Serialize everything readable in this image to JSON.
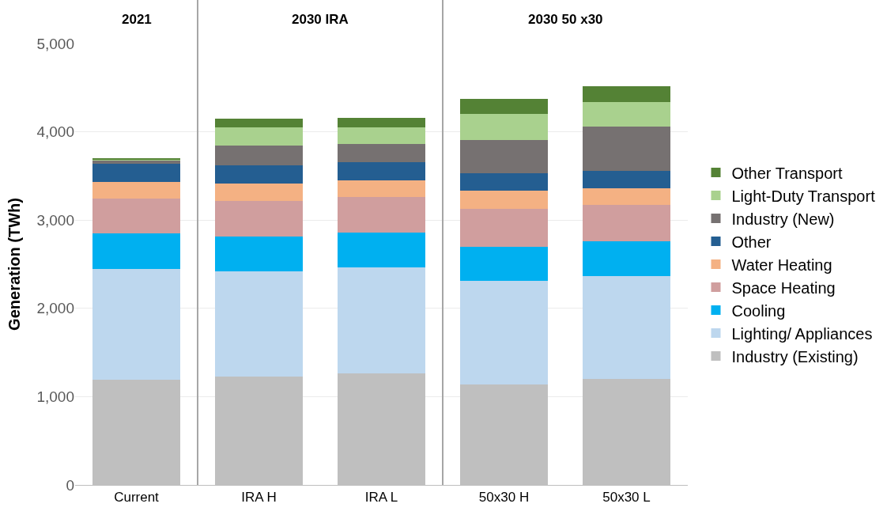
{
  "chart_data": {
    "type": "bar",
    "stacked": true,
    "ylabel": "Generation (TWh)",
    "categories": [
      "Current",
      "IRA H",
      "IRA L",
      "50x30 H",
      "50x30 L"
    ],
    "series": [
      {
        "name": "Industry (Existing)",
        "color": "#bfbfbf",
        "values": [
          1190,
          1230,
          1260,
          1140,
          1200
        ]
      },
      {
        "name": "Lighting/ Appliances",
        "color": "#bdd7ee",
        "values": [
          1260,
          1190,
          1200,
          1170,
          1170
        ]
      },
      {
        "name": "Cooling",
        "color": "#00b0f0",
        "values": [
          400,
          390,
          400,
          390,
          390
        ]
      },
      {
        "name": "Space Heating",
        "color": "#d09e9e",
        "values": [
          390,
          410,
          400,
          430,
          410
        ]
      },
      {
        "name": "Water Heating",
        "color": "#f4b183",
        "values": [
          190,
          190,
          190,
          200,
          190
        ]
      },
      {
        "name": "Other",
        "color": "#245e91",
        "values": [
          210,
          210,
          210,
          200,
          200
        ]
      },
      {
        "name": "Industry (New)",
        "color": "#767171",
        "values": [
          40,
          220,
          200,
          380,
          500
        ]
      },
      {
        "name": "Light-Duty Transport",
        "color": "#a9d18e",
        "values": [
          10,
          210,
          190,
          290,
          280
        ]
      },
      {
        "name": "Other Transport",
        "color": "#548235",
        "values": [
          10,
          100,
          110,
          170,
          180
        ]
      }
    ],
    "ylim": [
      0,
      5000
    ],
    "yticks": [
      {
        "value": 0,
        "label": "0"
      },
      {
        "value": 1000,
        "label": "1,000"
      },
      {
        "value": 2000,
        "label": "2,000"
      },
      {
        "value": 3000,
        "label": "3,000"
      },
      {
        "value": 4000,
        "label": "4,000"
      },
      {
        "value": 5000,
        "label": "5,000"
      }
    ],
    "grid": "y",
    "legend": "right",
    "annotations": [
      "2021",
      "2030 IRA",
      "2030 50 x30"
    ]
  }
}
